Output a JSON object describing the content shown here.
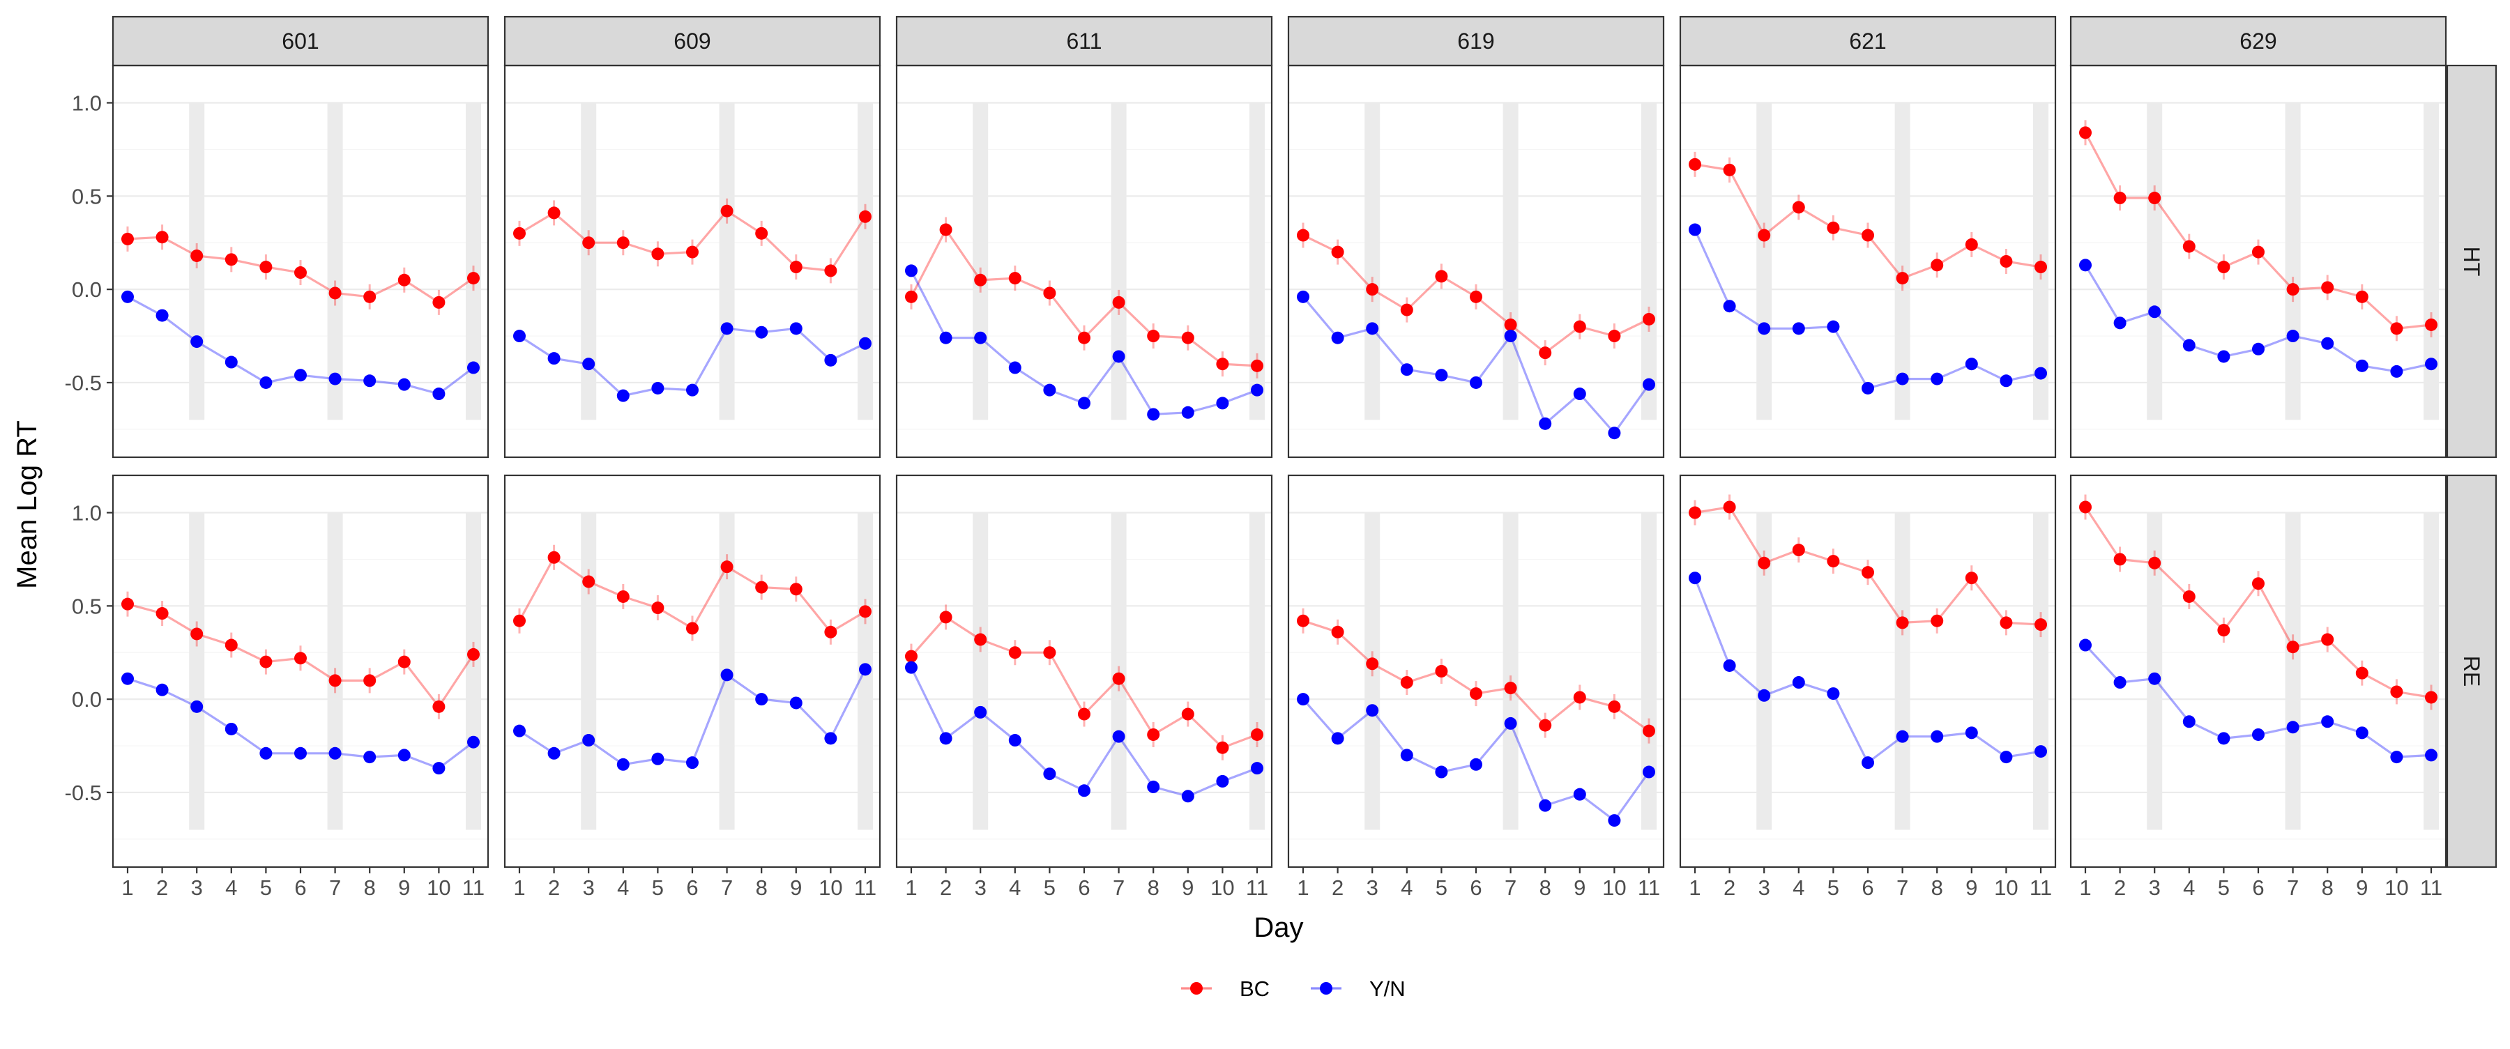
{
  "chart_data": {
    "type": "line",
    "xlabel": "Day",
    "ylabel": "Mean Log RT",
    "x": [
      1,
      2,
      3,
      4,
      5,
      6,
      7,
      8,
      9,
      10,
      11
    ],
    "x_tick_labels": [
      "1",
      "2",
      "3",
      "4",
      "5",
      "6",
      "7",
      "8",
      "9",
      "10",
      "11"
    ],
    "y_tick_labels": [
      "-0.5",
      "0.0",
      "0.5",
      "1.0"
    ],
    "y_ticks": [
      -0.5,
      0.0,
      0.5,
      1.0
    ],
    "ylim": [
      -0.9,
      1.2
    ],
    "shaded_days": [
      3,
      7,
      11
    ],
    "column_facets": [
      "601",
      "609",
      "611",
      "619",
      "621",
      "629"
    ],
    "row_facets": [
      "HT",
      "RE"
    ],
    "legend": {
      "position": "bottom",
      "entries": [
        "BC",
        "Y/N"
      ]
    },
    "series_colors": {
      "BC": "#ff0000",
      "Y/N": "#0000ff"
    },
    "panels": [
      {
        "subject": "601",
        "condition": "HT",
        "BC": [
          0.27,
          0.28,
          0.18,
          0.16,
          0.12,
          0.09,
          -0.02,
          -0.04,
          0.05,
          -0.07,
          0.06
        ],
        "Y/N": [
          -0.04,
          -0.14,
          -0.28,
          -0.39,
          -0.5,
          -0.46,
          -0.48,
          -0.49,
          -0.51,
          -0.56,
          -0.42
        ]
      },
      {
        "subject": "609",
        "condition": "HT",
        "BC": [
          0.3,
          0.41,
          0.25,
          0.25,
          0.19,
          0.2,
          0.42,
          0.3,
          0.12,
          0.1,
          0.39
        ],
        "Y/N": [
          -0.25,
          -0.37,
          -0.4,
          -0.57,
          -0.53,
          -0.54,
          -0.21,
          -0.23,
          -0.21,
          -0.38,
          -0.29
        ]
      },
      {
        "subject": "611",
        "condition": "HT",
        "BC": [
          -0.04,
          0.32,
          0.05,
          0.06,
          -0.02,
          -0.26,
          -0.07,
          -0.25,
          -0.26,
          -0.4,
          -0.41
        ],
        "Y/N": [
          0.1,
          -0.26,
          -0.26,
          -0.42,
          -0.54,
          -0.61,
          -0.36,
          -0.67,
          -0.66,
          -0.61,
          -0.54
        ]
      },
      {
        "subject": "619",
        "condition": "HT",
        "BC": [
          0.29,
          0.2,
          0.0,
          -0.11,
          0.07,
          -0.04,
          -0.19,
          -0.34,
          -0.2,
          -0.25,
          -0.16
        ],
        "Y/N": [
          -0.04,
          -0.26,
          -0.21,
          -0.43,
          -0.46,
          -0.5,
          -0.25,
          -0.72,
          -0.56,
          -0.77,
          -0.51
        ]
      },
      {
        "subject": "621",
        "condition": "HT",
        "BC": [
          0.67,
          0.64,
          0.29,
          0.44,
          0.33,
          0.29,
          0.06,
          0.13,
          0.24,
          0.15,
          0.12
        ],
        "Y/N": [
          0.32,
          -0.09,
          -0.21,
          -0.21,
          -0.2,
          -0.53,
          -0.48,
          -0.48,
          -0.4,
          -0.49,
          -0.45
        ]
      },
      {
        "subject": "629",
        "condition": "HT",
        "BC": [
          0.84,
          0.49,
          0.49,
          0.23,
          0.12,
          0.2,
          0.0,
          0.01,
          -0.04,
          -0.21,
          -0.19
        ],
        "Y/N": [
          0.13,
          -0.18,
          -0.12,
          -0.3,
          -0.36,
          -0.32,
          -0.25,
          -0.29,
          -0.41,
          -0.44,
          -0.4
        ]
      },
      {
        "subject": "601",
        "condition": "RE",
        "BC": [
          0.51,
          0.46,
          0.35,
          0.29,
          0.2,
          0.22,
          0.1,
          0.1,
          0.2,
          -0.04,
          0.24
        ],
        "Y/N": [
          0.11,
          0.05,
          -0.04,
          -0.16,
          -0.29,
          -0.29,
          -0.29,
          -0.31,
          -0.3,
          -0.37,
          -0.23
        ]
      },
      {
        "subject": "609",
        "condition": "RE",
        "BC": [
          0.42,
          0.76,
          0.63,
          0.55,
          0.49,
          0.38,
          0.71,
          0.6,
          0.59,
          0.36,
          0.47
        ],
        "Y/N": [
          -0.17,
          -0.29,
          -0.22,
          -0.35,
          -0.32,
          -0.34,
          0.13,
          0.0,
          -0.02,
          -0.21,
          0.16
        ]
      },
      {
        "subject": "611",
        "condition": "RE",
        "BC": [
          0.23,
          0.44,
          0.32,
          0.25,
          0.25,
          -0.08,
          0.11,
          -0.19,
          -0.08,
          -0.26,
          -0.19
        ],
        "Y/N": [
          0.17,
          -0.21,
          -0.07,
          -0.22,
          -0.4,
          -0.49,
          -0.2,
          -0.47,
          -0.52,
          -0.44,
          -0.37
        ]
      },
      {
        "subject": "619",
        "condition": "RE",
        "BC": [
          0.42,
          0.36,
          0.19,
          0.09,
          0.15,
          0.03,
          0.06,
          -0.14,
          0.01,
          -0.04,
          -0.17
        ],
        "Y/N": [
          0.0,
          -0.21,
          -0.06,
          -0.3,
          -0.39,
          -0.35,
          -0.13,
          -0.57,
          -0.51,
          -0.65,
          -0.39
        ]
      },
      {
        "subject": "621",
        "condition": "RE",
        "BC": [
          1.0,
          1.03,
          0.73,
          0.8,
          0.74,
          0.68,
          0.41,
          0.42,
          0.65,
          0.41,
          0.4
        ],
        "Y/N": [
          0.65,
          0.18,
          0.02,
          0.09,
          0.03,
          -0.34,
          -0.2,
          -0.2,
          -0.18,
          -0.31,
          -0.28
        ]
      },
      {
        "subject": "629",
        "condition": "RE",
        "BC": [
          1.03,
          0.75,
          0.73,
          0.55,
          0.37,
          0.62,
          0.28,
          0.32,
          0.14,
          0.04,
          0.01
        ],
        "Y/N": [
          0.29,
          0.09,
          0.11,
          -0.12,
          -0.21,
          -0.19,
          -0.15,
          -0.12,
          -0.18,
          -0.31,
          -0.3
        ]
      }
    ]
  }
}
